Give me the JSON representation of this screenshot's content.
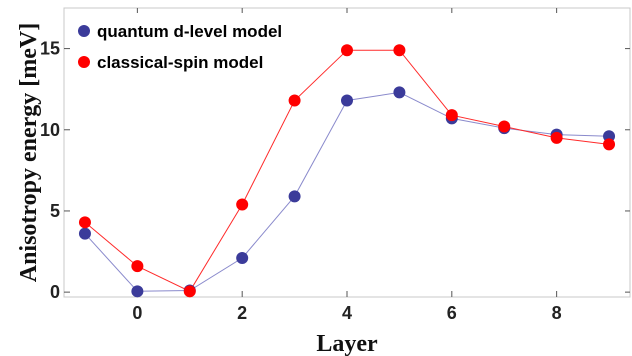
{
  "chart_data": {
    "type": "line",
    "title": "",
    "xlabel": "Layer",
    "ylabel": "Anisotropy energy [meV]",
    "xlim": [
      -1.4,
      9.4
    ],
    "ylim": [
      -0.3,
      17.5
    ],
    "x_ticks": [
      0,
      2,
      4,
      6,
      8
    ],
    "x_tick_labels": [
      "0",
      "2",
      "4",
      "6",
      "8"
    ],
    "y_ticks": [
      0,
      5,
      10,
      15
    ],
    "y_tick_labels": [
      "0",
      "5",
      "10",
      "15"
    ],
    "grid": false,
    "legend_position": "top-left",
    "x": [
      -1,
      0,
      1,
      2,
      3,
      4,
      5,
      6,
      7,
      8,
      9
    ],
    "series": [
      {
        "name": "quantum d-level model",
        "color": "#3b3b9a",
        "line_color": "#8a8acc",
        "values": [
          3.6,
          0.05,
          0.1,
          2.1,
          5.9,
          11.8,
          12.3,
          10.7,
          10.1,
          9.7,
          9.6
        ]
      },
      {
        "name": "classical-spin model",
        "color": "#ff0000",
        "line_color": "#ff2a2a",
        "values": [
          4.3,
          1.6,
          0.05,
          5.4,
          11.8,
          14.9,
          14.9,
          10.9,
          10.2,
          9.5,
          9.1
        ]
      }
    ]
  }
}
